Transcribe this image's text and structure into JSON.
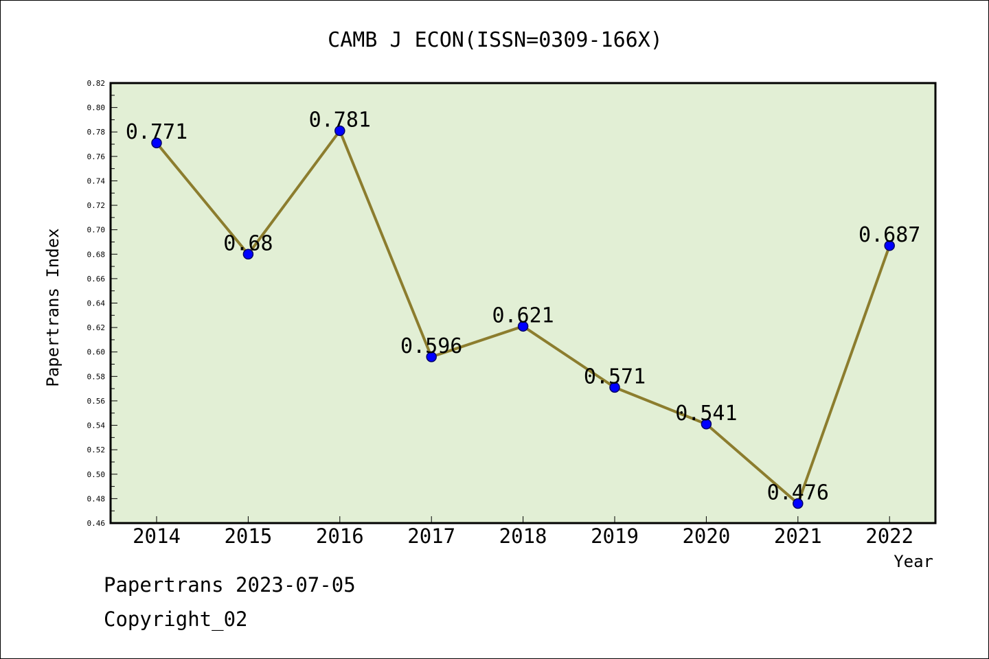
{
  "chart_data": {
    "type": "line",
    "title": "CAMB J ECON(ISSN=0309-166X)",
    "xlabel": "Year",
    "ylabel": "Papertrans Index",
    "x": [
      "2014",
      "2015",
      "2016",
      "2017",
      "2018",
      "2019",
      "2020",
      "2021",
      "2022"
    ],
    "values": [
      0.771,
      0.68,
      0.781,
      0.596,
      0.621,
      0.571,
      0.541,
      0.476,
      0.687
    ],
    "point_labels": [
      "0.771",
      "0.68",
      "0.781",
      "0.596",
      "0.621",
      "0.571",
      "0.541",
      "0.476",
      "0.687"
    ],
    "ylim": [
      0.46,
      0.82
    ],
    "yticks": [
      "0.46",
      "0.48",
      "0.50",
      "0.52",
      "0.54",
      "0.56",
      "0.58",
      "0.60",
      "0.62",
      "0.64",
      "0.66",
      "0.68",
      "0.70",
      "0.72",
      "0.74",
      "0.76",
      "0.78",
      "0.80",
      "0.82"
    ],
    "grid": false,
    "legend": "none",
    "colors": {
      "plot_background": "#e2efd5",
      "line": "#8c7d2e",
      "marker": "#0000ff",
      "marker_edge": "#000066"
    }
  },
  "footer": {
    "line1": "Papertrans 2023-07-05",
    "line2": "Copyright_02"
  }
}
